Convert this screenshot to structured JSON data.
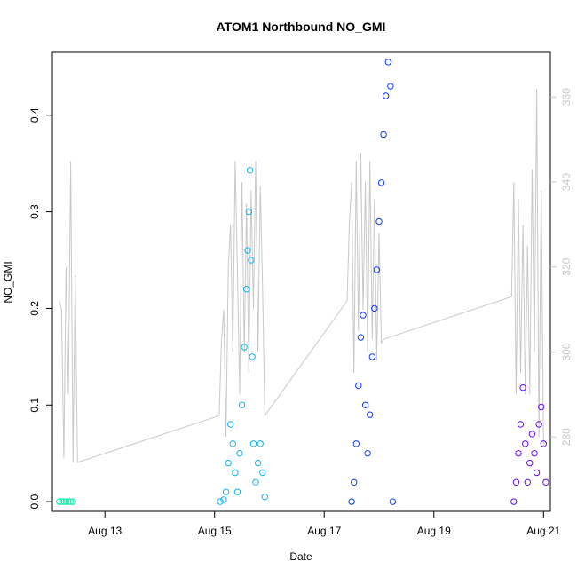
{
  "chart_data": {
    "type": "scatter",
    "title": "ATOM1 Northbound NO_GMI",
    "xlabel": "Date",
    "ylabel": "NO_GMI",
    "x_unit": "date",
    "xlim": [
      "2023-08-12 01:00",
      "2023-08-21 03:00"
    ],
    "ylim": [
      -0.01,
      0.465
    ],
    "y2lim": [
      262.5,
      370.5
    ],
    "x_ticks": [
      {
        "label": "Aug 13",
        "date": "2023-08-13"
      },
      {
        "label": "Aug 15",
        "date": "2023-08-15"
      },
      {
        "label": "Aug 17",
        "date": "2023-08-17"
      },
      {
        "label": "Aug 19",
        "date": "2023-08-19"
      },
      {
        "label": "Aug 21",
        "date": "2023-08-21"
      }
    ],
    "y_ticks": [
      {
        "label": "0.0",
        "value": 0.0
      },
      {
        "label": "0.1",
        "value": 0.1
      },
      {
        "label": "0.2",
        "value": 0.2
      },
      {
        "label": "0.3",
        "value": 0.3
      },
      {
        "label": "0.4",
        "value": 0.4
      }
    ],
    "y2_ticks": [
      {
        "label": "280",
        "value": 280
      },
      {
        "label": "300",
        "value": 300
      },
      {
        "label": "320",
        "value": 320
      },
      {
        "label": "340",
        "value": 340
      },
      {
        "label": "360",
        "value": 360
      }
    ],
    "grid": false,
    "legend": "none",
    "series": [
      {
        "color": "#1aefb0",
        "marker": "open-circle",
        "points": [
          [
            "2023-08-12 04:00",
            0.0
          ],
          [
            "2023-08-12 05:00",
            0.0
          ],
          [
            "2023-08-12 06:00",
            0.0
          ],
          [
            "2023-08-12 07:00",
            0.0
          ],
          [
            "2023-08-12 08:00",
            0.0
          ],
          [
            "2023-08-12 09:00",
            0.0
          ],
          [
            "2023-08-12 10:00",
            0.0
          ]
        ]
      },
      {
        "color": "#10b4ee",
        "marker": "open-circle",
        "points": [
          [
            "2023-08-15 02:30",
            0.0
          ],
          [
            "2023-08-15 04:00",
            0.002
          ],
          [
            "2023-08-15 05:00",
            0.01
          ],
          [
            "2023-08-15 06:00",
            0.04
          ],
          [
            "2023-08-15 07:00",
            0.08
          ],
          [
            "2023-08-15 08:00",
            0.06
          ],
          [
            "2023-08-15 09:00",
            0.03
          ],
          [
            "2023-08-15 10:00",
            0.01
          ],
          [
            "2023-08-15 11:00",
            0.05
          ],
          [
            "2023-08-15 12:00",
            0.1
          ],
          [
            "2023-08-15 13:00",
            0.16
          ],
          [
            "2023-08-15 14:00",
            0.22
          ],
          [
            "2023-08-15 14:30",
            0.26
          ],
          [
            "2023-08-15 15:00",
            0.3
          ],
          [
            "2023-08-15 15:30",
            0.343
          ],
          [
            "2023-08-15 16:00",
            0.25
          ],
          [
            "2023-08-15 16:30",
            0.15
          ],
          [
            "2023-08-15 17:00",
            0.06
          ],
          [
            "2023-08-15 18:00",
            0.02
          ],
          [
            "2023-08-15 19:00",
            0.04
          ],
          [
            "2023-08-15 20:00",
            0.06
          ],
          [
            "2023-08-15 21:00",
            0.03
          ],
          [
            "2023-08-15 22:00",
            0.005
          ]
        ]
      },
      {
        "color": "#0d3ef2",
        "marker": "open-circle",
        "points": [
          [
            "2023-08-17 12:00",
            0.0
          ],
          [
            "2023-08-17 13:00",
            0.02
          ],
          [
            "2023-08-17 14:00",
            0.06
          ],
          [
            "2023-08-17 15:00",
            0.12
          ],
          [
            "2023-08-17 16:00",
            0.17
          ],
          [
            "2023-08-17 17:00",
            0.193
          ],
          [
            "2023-08-17 18:00",
            0.1
          ],
          [
            "2023-08-17 19:00",
            0.05
          ],
          [
            "2023-08-17 20:00",
            0.09
          ],
          [
            "2023-08-17 21:00",
            0.15
          ],
          [
            "2023-08-17 22:00",
            0.2
          ],
          [
            "2023-08-17 23:00",
            0.24
          ],
          [
            "2023-08-18 00:00",
            0.29
          ],
          [
            "2023-08-18 01:00",
            0.33
          ],
          [
            "2023-08-18 02:00",
            0.38
          ],
          [
            "2023-08-18 03:00",
            0.42
          ],
          [
            "2023-08-18 04:00",
            0.455
          ],
          [
            "2023-08-18 05:00",
            0.43
          ],
          [
            "2023-08-18 06:00",
            0.0
          ]
        ]
      },
      {
        "color": "#6a0bf2",
        "marker": "open-circle",
        "points": [
          [
            "2023-08-20 11:00",
            0.0
          ],
          [
            "2023-08-20 12:00",
            0.02
          ],
          [
            "2023-08-20 13:00",
            0.05
          ],
          [
            "2023-08-20 14:00",
            0.08
          ],
          [
            "2023-08-20 15:00",
            0.118
          ],
          [
            "2023-08-20 16:00",
            0.06
          ],
          [
            "2023-08-20 17:00",
            0.02
          ],
          [
            "2023-08-20 18:00",
            0.04
          ],
          [
            "2023-08-20 19:00",
            0.07
          ],
          [
            "2023-08-20 20:00",
            0.05
          ],
          [
            "2023-08-20 21:00",
            0.03
          ],
          [
            "2023-08-20 22:00",
            0.08
          ],
          [
            "2023-08-20 23:00",
            0.098
          ],
          [
            "2023-08-21 00:00",
            0.06
          ],
          [
            "2023-08-21 01:00",
            0.02
          ]
        ]
      }
    ],
    "secondary_series": {
      "axis": "right",
      "color": "#c8c8c8",
      "type": "line",
      "points": [
        [
          "2023-08-12 04:00",
          312
        ],
        [
          "2023-08-12 05:00",
          310
        ],
        [
          "2023-08-12 06:00",
          275
        ],
        [
          "2023-08-12 07:00",
          320
        ],
        [
          "2023-08-12 08:00",
          290
        ],
        [
          "2023-08-12 09:00",
          345
        ],
        [
          "2023-08-12 10:00",
          274
        ],
        [
          "2023-08-12 11:00",
          318
        ],
        [
          "2023-08-12 12:00",
          274
        ],
        [
          "2023-08-15 02:00",
          285
        ],
        [
          "2023-08-15 03:00",
          302
        ],
        [
          "2023-08-15 04:00",
          310
        ],
        [
          "2023-08-15 05:00",
          280
        ],
        [
          "2023-08-15 06:00",
          320
        ],
        [
          "2023-08-15 07:00",
          330
        ],
        [
          "2023-08-15 08:00",
          300
        ],
        [
          "2023-08-15 09:00",
          345
        ],
        [
          "2023-08-15 10:00",
          320
        ],
        [
          "2023-08-15 11:00",
          290
        ],
        [
          "2023-08-15 12:00",
          340
        ],
        [
          "2023-08-15 13:00",
          300
        ],
        [
          "2023-08-15 14:00",
          335
        ],
        [
          "2023-08-15 15:00",
          295
        ],
        [
          "2023-08-15 16:00",
          338
        ],
        [
          "2023-08-15 17:00",
          310
        ],
        [
          "2023-08-15 18:00",
          345
        ],
        [
          "2023-08-15 19:00",
          300
        ],
        [
          "2023-08-15 20:00",
          339
        ],
        [
          "2023-08-15 21:00",
          315
        ],
        [
          "2023-08-15 22:00",
          285
        ],
        [
          "2023-08-17 10:00",
          312
        ],
        [
          "2023-08-17 11:00",
          330
        ],
        [
          "2023-08-17 12:00",
          340
        ],
        [
          "2023-08-17 13:00",
          295
        ],
        [
          "2023-08-17 14:00",
          345
        ],
        [
          "2023-08-17 15:00",
          305
        ],
        [
          "2023-08-17 16:00",
          347
        ],
        [
          "2023-08-17 17:00",
          310
        ],
        [
          "2023-08-17 18:00",
          340
        ],
        [
          "2023-08-17 19:00",
          300
        ],
        [
          "2023-08-17 20:00",
          345
        ],
        [
          "2023-08-17 21:00",
          303
        ],
        [
          "2023-08-17 22:00",
          336
        ],
        [
          "2023-08-17 23:00",
          298
        ],
        [
          "2023-08-18 00:00",
          328
        ],
        [
          "2023-08-18 01:00",
          302
        ],
        [
          "2023-08-18 02:00",
          303
        ],
        [
          "2023-08-20 10:00",
          313
        ],
        [
          "2023-08-20 11:00",
          340
        ],
        [
          "2023-08-20 12:00",
          290
        ],
        [
          "2023-08-20 13:00",
          336
        ],
        [
          "2023-08-20 14:00",
          295
        ],
        [
          "2023-08-20 15:00",
          330
        ],
        [
          "2023-08-20 16:00",
          290
        ],
        [
          "2023-08-20 17:00",
          325
        ],
        [
          "2023-08-20 18:00",
          290
        ],
        [
          "2023-08-20 19:00",
          343
        ],
        [
          "2023-08-20 20:00",
          300
        ],
        [
          "2023-08-20 21:00",
          362
        ],
        [
          "2023-08-20 22:00",
          280
        ],
        [
          "2023-08-20 23:00",
          338
        ],
        [
          "2023-08-21 00:00",
          278
        ]
      ]
    }
  }
}
